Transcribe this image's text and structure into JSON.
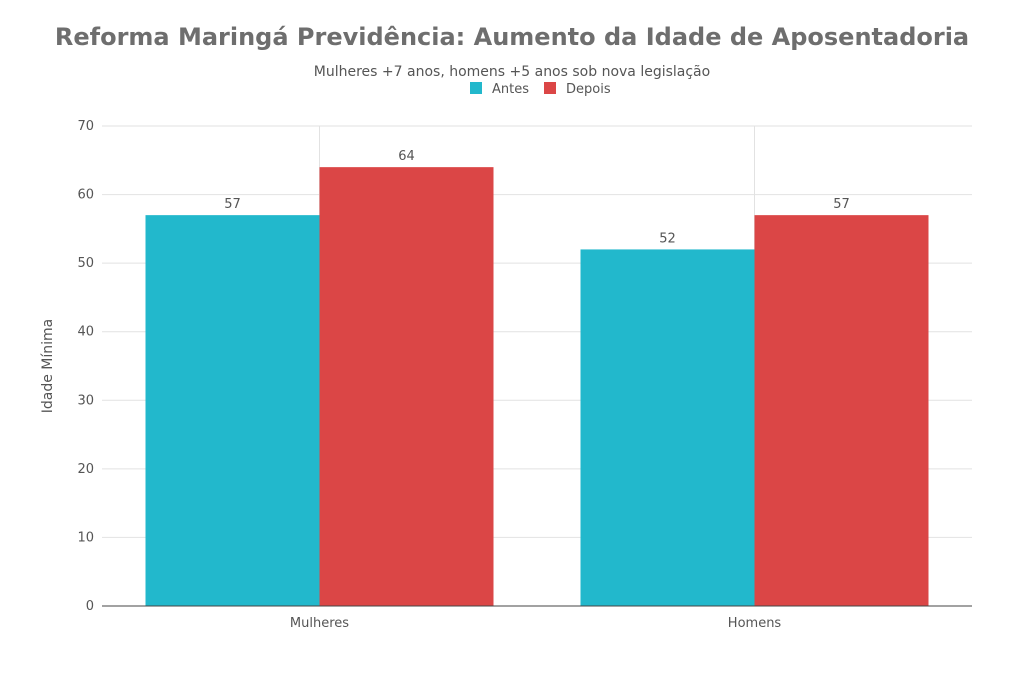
{
  "chart_data": {
    "type": "bar",
    "title": "Reforma Maringá Previdência: Aumento da Idade de Aposentadoria",
    "subtitle": "Mulheres +7 anos, homens +5 anos sob nova legislação",
    "categories": [
      "Mulheres",
      "Homens"
    ],
    "series": [
      {
        "name": "Antes",
        "values": [
          57,
          52
        ],
        "color": "#22b8cc"
      },
      {
        "name": "Depois",
        "values": [
          64,
          57
        ],
        "color": "#db4646"
      }
    ],
    "xlabel": "",
    "ylabel": "Idade Mínima",
    "ylim": [
      0,
      70
    ],
    "yticks": [
      0,
      10,
      20,
      30,
      40,
      50,
      60,
      70
    ],
    "grid": true,
    "legend_position": "top-center",
    "data_labels": true
  }
}
